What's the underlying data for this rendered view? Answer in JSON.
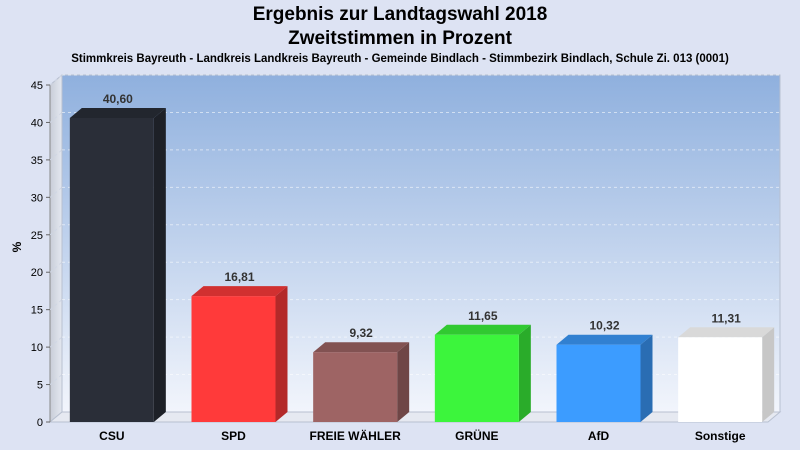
{
  "chart_data": {
    "type": "bar",
    "title": "Ergebnis zur Landtagswahl 2018",
    "subtitle_line": "Zweitstimmen in Prozent",
    "subtitle": "Stimmkreis Bayreuth - Landkreis Landkreis Bayreuth - Gemeinde Bindlach - Stimmbezirk Bindlach, Schule Zi. 013 (0001)",
    "ylabel": "%",
    "xlabel": "",
    "ylim": [
      0,
      45
    ],
    "yticks": [
      "0",
      "5",
      "10",
      "15",
      "20",
      "25",
      "30",
      "35",
      "40",
      "45"
    ],
    "categories": [
      "CSU",
      "SPD",
      "FREIE WÄHLER",
      "GRÜNE",
      "AfD",
      "Sonstige"
    ],
    "values": [
      40.6,
      16.81,
      9.32,
      11.65,
      10.32,
      11.31
    ],
    "value_labels": [
      "40,60",
      "16,81",
      "9,32",
      "11,65",
      "10,32",
      "11,31"
    ],
    "colors": [
      "#2a2e38",
      "#ff3a3a",
      "#9e6464",
      "#3cf53c",
      "#3c9cff",
      "#ffffff"
    ],
    "grid": true,
    "legend": "none"
  }
}
